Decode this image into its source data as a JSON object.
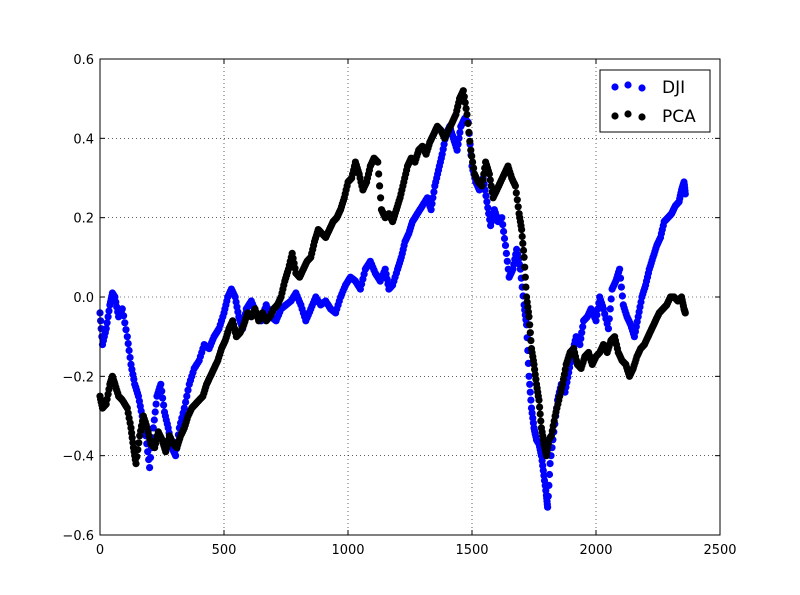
{
  "chart_data": {
    "type": "scatter",
    "title": "",
    "xlabel": "",
    "ylabel": "",
    "xlim": [
      0,
      2500
    ],
    "ylim": [
      -0.6,
      0.6
    ],
    "x_ticks": [
      0,
      500,
      1000,
      1500,
      2000,
      2500
    ],
    "y_ticks": [
      -0.6,
      -0.4,
      -0.2,
      0.0,
      0.2,
      0.4,
      0.6
    ],
    "x_tick_labels": [
      "0",
      "500",
      "1000",
      "1500",
      "2000",
      "2500"
    ],
    "y_tick_labels": [
      "−0.6",
      "−0.4",
      "−0.2",
      "0.0",
      "0.2",
      "0.4",
      "0.6"
    ],
    "grid": true,
    "legend_position": "top-right",
    "series": [
      {
        "name": "DJI",
        "color": "#0000ff",
        "points": [
          [
            0,
            -0.04
          ],
          [
            10,
            -0.12
          ],
          [
            25,
            -0.08
          ],
          [
            40,
            -0.02
          ],
          [
            50,
            0.01
          ],
          [
            60,
            0.0
          ],
          [
            75,
            -0.05
          ],
          [
            90,
            -0.03
          ],
          [
            110,
            -0.1
          ],
          [
            125,
            -0.17
          ],
          [
            140,
            -0.22
          ],
          [
            155,
            -0.25
          ],
          [
            170,
            -0.3
          ],
          [
            185,
            -0.35
          ],
          [
            200,
            -0.43
          ],
          [
            215,
            -0.33
          ],
          [
            230,
            -0.25
          ],
          [
            245,
            -0.22
          ],
          [
            260,
            -0.29
          ],
          [
            275,
            -0.33
          ],
          [
            290,
            -0.38
          ],
          [
            305,
            -0.4
          ],
          [
            320,
            -0.33
          ],
          [
            340,
            -0.28
          ],
          [
            360,
            -0.22
          ],
          [
            380,
            -0.18
          ],
          [
            400,
            -0.16
          ],
          [
            420,
            -0.12
          ],
          [
            440,
            -0.13
          ],
          [
            460,
            -0.1
          ],
          [
            480,
            -0.08
          ],
          [
            500,
            -0.04
          ],
          [
            515,
            0.0
          ],
          [
            530,
            0.02
          ],
          [
            545,
            0.0
          ],
          [
            560,
            -0.05
          ],
          [
            575,
            -0.08
          ],
          [
            590,
            -0.03
          ],
          [
            610,
            -0.01
          ],
          [
            630,
            -0.04
          ],
          [
            650,
            -0.06
          ],
          [
            670,
            -0.02
          ],
          [
            690,
            -0.05
          ],
          [
            710,
            -0.06
          ],
          [
            730,
            -0.03
          ],
          [
            750,
            -0.02
          ],
          [
            770,
            -0.01
          ],
          [
            790,
            0.01
          ],
          [
            810,
            -0.02
          ],
          [
            830,
            -0.06
          ],
          [
            850,
            -0.03
          ],
          [
            870,
            0.0
          ],
          [
            890,
            -0.02
          ],
          [
            910,
            -0.01
          ],
          [
            930,
            -0.03
          ],
          [
            950,
            -0.04
          ],
          [
            970,
            0.0
          ],
          [
            990,
            0.03
          ],
          [
            1010,
            0.05
          ],
          [
            1030,
            0.04
          ],
          [
            1050,
            0.02
          ],
          [
            1070,
            0.07
          ],
          [
            1090,
            0.09
          ],
          [
            1110,
            0.06
          ],
          [
            1130,
            0.04
          ],
          [
            1150,
            0.07
          ],
          [
            1165,
            0.02
          ],
          [
            1180,
            0.03
          ],
          [
            1200,
            0.07
          ],
          [
            1215,
            0.1
          ],
          [
            1230,
            0.14
          ],
          [
            1245,
            0.16
          ],
          [
            1260,
            0.19
          ],
          [
            1280,
            0.21
          ],
          [
            1300,
            0.23
          ],
          [
            1320,
            0.25
          ],
          [
            1335,
            0.22
          ],
          [
            1350,
            0.28
          ],
          [
            1365,
            0.32
          ],
          [
            1380,
            0.36
          ],
          [
            1395,
            0.41
          ],
          [
            1410,
            0.43
          ],
          [
            1425,
            0.4
          ],
          [
            1440,
            0.37
          ],
          [
            1455,
            0.43
          ],
          [
            1470,
            0.45
          ],
          [
            1485,
            0.44
          ],
          [
            1500,
            0.33
          ],
          [
            1515,
            0.29
          ],
          [
            1530,
            0.27
          ],
          [
            1545,
            0.3
          ],
          [
            1560,
            0.24
          ],
          [
            1575,
            0.18
          ],
          [
            1590,
            0.22
          ],
          [
            1605,
            0.19
          ],
          [
            1620,
            0.2
          ],
          [
            1635,
            0.13
          ],
          [
            1650,
            0.05
          ],
          [
            1665,
            0.07
          ],
          [
            1680,
            0.12
          ],
          [
            1695,
            0.07
          ],
          [
            1710,
            -0.02
          ],
          [
            1720,
            -0.07
          ],
          [
            1730,
            -0.2
          ],
          [
            1740,
            -0.28
          ],
          [
            1750,
            -0.33
          ],
          [
            1760,
            -0.36
          ],
          [
            1770,
            -0.37
          ],
          [
            1780,
            -0.4
          ],
          [
            1790,
            -0.45
          ],
          [
            1800,
            -0.5
          ],
          [
            1805,
            -0.53
          ],
          [
            1815,
            -0.42
          ],
          [
            1830,
            -0.34
          ],
          [
            1845,
            -0.26
          ],
          [
            1860,
            -0.22
          ],
          [
            1875,
            -0.24
          ],
          [
            1890,
            -0.19
          ],
          [
            1905,
            -0.14
          ],
          [
            1920,
            -0.1
          ],
          [
            1935,
            -0.12
          ],
          [
            1950,
            -0.06
          ],
          [
            1965,
            -0.05
          ],
          [
            1980,
            -0.03
          ],
          [
            2000,
            -0.06
          ],
          [
            2015,
            0.0
          ],
          [
            2030,
            -0.03
          ],
          [
            2050,
            -0.08
          ],
          [
            2065,
            0.02
          ],
          [
            2080,
            0.04
          ],
          [
            2095,
            0.07
          ],
          [
            2110,
            -0.02
          ],
          [
            2125,
            -0.05
          ],
          [
            2140,
            -0.07
          ],
          [
            2155,
            -0.1
          ],
          [
            2170,
            -0.05
          ],
          [
            2185,
            0.0
          ],
          [
            2200,
            0.03
          ],
          [
            2215,
            0.07
          ],
          [
            2230,
            0.1
          ],
          [
            2245,
            0.13
          ],
          [
            2260,
            0.15
          ],
          [
            2275,
            0.19
          ],
          [
            2290,
            0.2
          ],
          [
            2305,
            0.21
          ],
          [
            2320,
            0.23
          ],
          [
            2335,
            0.24
          ],
          [
            2345,
            0.27
          ],
          [
            2355,
            0.29
          ],
          [
            2360,
            0.26
          ]
        ]
      },
      {
        "name": "PCA",
        "color": "#000000",
        "points": [
          [
            0,
            -0.25
          ],
          [
            10,
            -0.28
          ],
          [
            25,
            -0.27
          ],
          [
            40,
            -0.22
          ],
          [
            50,
            -0.2
          ],
          [
            60,
            -0.22
          ],
          [
            75,
            -0.25
          ],
          [
            90,
            -0.26
          ],
          [
            110,
            -0.28
          ],
          [
            125,
            -0.33
          ],
          [
            135,
            -0.38
          ],
          [
            145,
            -0.42
          ],
          [
            160,
            -0.35
          ],
          [
            175,
            -0.3
          ],
          [
            190,
            -0.33
          ],
          [
            205,
            -0.37
          ],
          [
            220,
            -0.38
          ],
          [
            235,
            -0.34
          ],
          [
            250,
            -0.36
          ],
          [
            265,
            -0.39
          ],
          [
            280,
            -0.35
          ],
          [
            295,
            -0.37
          ],
          [
            310,
            -0.38
          ],
          [
            325,
            -0.35
          ],
          [
            340,
            -0.33
          ],
          [
            355,
            -0.3
          ],
          [
            370,
            -0.28
          ],
          [
            385,
            -0.27
          ],
          [
            400,
            -0.26
          ],
          [
            415,
            -0.25
          ],
          [
            430,
            -0.22
          ],
          [
            445,
            -0.2
          ],
          [
            460,
            -0.18
          ],
          [
            475,
            -0.16
          ],
          [
            490,
            -0.13
          ],
          [
            505,
            -0.11
          ],
          [
            520,
            -0.08
          ],
          [
            535,
            -0.06
          ],
          [
            550,
            -0.1
          ],
          [
            565,
            -0.09
          ],
          [
            580,
            -0.07
          ],
          [
            595,
            -0.04
          ],
          [
            610,
            -0.05
          ],
          [
            625,
            -0.03
          ],
          [
            640,
            -0.06
          ],
          [
            655,
            -0.04
          ],
          [
            670,
            -0.06
          ],
          [
            685,
            -0.05
          ],
          [
            700,
            -0.03
          ],
          [
            715,
            -0.02
          ],
          [
            730,
            0.0
          ],
          [
            745,
            0.04
          ],
          [
            760,
            0.07
          ],
          [
            775,
            0.11
          ],
          [
            790,
            0.06
          ],
          [
            805,
            0.05
          ],
          [
            820,
            0.07
          ],
          [
            835,
            0.09
          ],
          [
            850,
            0.1
          ],
          [
            865,
            0.14
          ],
          [
            880,
            0.17
          ],
          [
            895,
            0.16
          ],
          [
            910,
            0.15
          ],
          [
            925,
            0.17
          ],
          [
            940,
            0.19
          ],
          [
            955,
            0.2
          ],
          [
            970,
            0.22
          ],
          [
            985,
            0.25
          ],
          [
            1000,
            0.29
          ],
          [
            1015,
            0.3
          ],
          [
            1030,
            0.34
          ],
          [
            1045,
            0.31
          ],
          [
            1060,
            0.27
          ],
          [
            1075,
            0.29
          ],
          [
            1090,
            0.33
          ],
          [
            1105,
            0.35
          ],
          [
            1120,
            0.34
          ],
          [
            1135,
            0.22
          ],
          [
            1150,
            0.2
          ],
          [
            1165,
            0.21
          ],
          [
            1180,
            0.19
          ],
          [
            1195,
            0.22
          ],
          [
            1210,
            0.25
          ],
          [
            1225,
            0.29
          ],
          [
            1240,
            0.33
          ],
          [
            1255,
            0.35
          ],
          [
            1270,
            0.34
          ],
          [
            1285,
            0.37
          ],
          [
            1300,
            0.38
          ],
          [
            1315,
            0.36
          ],
          [
            1330,
            0.39
          ],
          [
            1345,
            0.41
          ],
          [
            1360,
            0.43
          ],
          [
            1375,
            0.42
          ],
          [
            1390,
            0.4
          ],
          [
            1405,
            0.42
          ],
          [
            1420,
            0.44
          ],
          [
            1435,
            0.46
          ],
          [
            1450,
            0.5
          ],
          [
            1465,
            0.52
          ],
          [
            1480,
            0.46
          ],
          [
            1495,
            0.37
          ],
          [
            1510,
            0.31
          ],
          [
            1525,
            0.29
          ],
          [
            1540,
            0.28
          ],
          [
            1555,
            0.34
          ],
          [
            1570,
            0.31
          ],
          [
            1585,
            0.25
          ],
          [
            1600,
            0.27
          ],
          [
            1615,
            0.29
          ],
          [
            1630,
            0.31
          ],
          [
            1645,
            0.33
          ],
          [
            1660,
            0.3
          ],
          [
            1675,
            0.28
          ],
          [
            1690,
            0.21
          ],
          [
            1700,
            0.17
          ],
          [
            1710,
            0.1
          ],
          [
            1720,
            0.0
          ],
          [
            1730,
            -0.05
          ],
          [
            1740,
            -0.13
          ],
          [
            1750,
            -0.17
          ],
          [
            1760,
            -0.22
          ],
          [
            1770,
            -0.26
          ],
          [
            1780,
            -0.33
          ],
          [
            1790,
            -0.37
          ],
          [
            1800,
            -0.4
          ],
          [
            1810,
            -0.36
          ],
          [
            1820,
            -0.35
          ],
          [
            1835,
            -0.3
          ],
          [
            1850,
            -0.26
          ],
          [
            1865,
            -0.22
          ],
          [
            1880,
            -0.17
          ],
          [
            1895,
            -0.14
          ],
          [
            1910,
            -0.13
          ],
          [
            1925,
            -0.17
          ],
          [
            1940,
            -0.18
          ],
          [
            1955,
            -0.15
          ],
          [
            1970,
            -0.14
          ],
          [
            1985,
            -0.17
          ],
          [
            2000,
            -0.15
          ],
          [
            2015,
            -0.14
          ],
          [
            2030,
            -0.12
          ],
          [
            2045,
            -0.14
          ],
          [
            2060,
            -0.11
          ],
          [
            2075,
            -0.1
          ],
          [
            2090,
            -0.14
          ],
          [
            2105,
            -0.16
          ],
          [
            2120,
            -0.17
          ],
          [
            2135,
            -0.2
          ],
          [
            2150,
            -0.18
          ],
          [
            2165,
            -0.15
          ],
          [
            2180,
            -0.13
          ],
          [
            2195,
            -0.12
          ],
          [
            2210,
            -0.1
          ],
          [
            2225,
            -0.08
          ],
          [
            2240,
            -0.06
          ],
          [
            2255,
            -0.04
          ],
          [
            2270,
            -0.03
          ],
          [
            2285,
            -0.02
          ],
          [
            2300,
            0.0
          ],
          [
            2315,
            0.0
          ],
          [
            2330,
            -0.01
          ],
          [
            2345,
            0.0
          ],
          [
            2355,
            -0.03
          ],
          [
            2360,
            -0.04
          ]
        ]
      }
    ]
  }
}
